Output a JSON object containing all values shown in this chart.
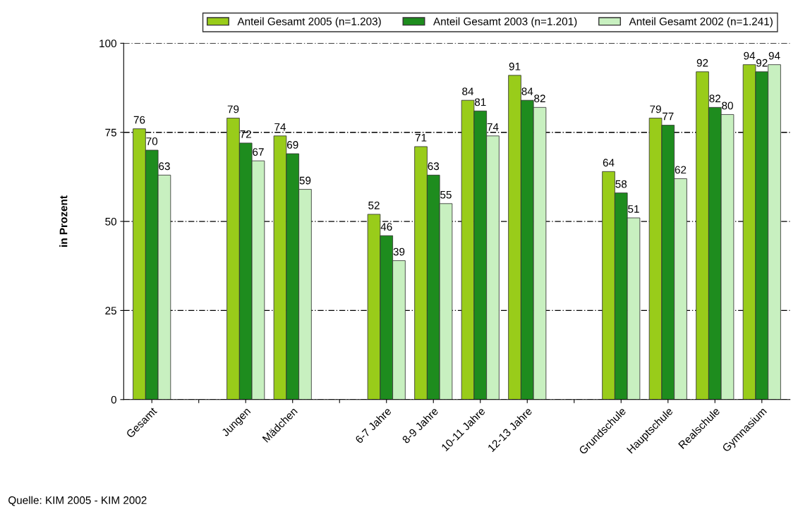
{
  "chart_data": {
    "type": "bar",
    "ylabel": "in Prozent",
    "categories": [
      "Gesamt",
      null,
      "Jungen",
      "Mädchen",
      null,
      "6-7 Jahre",
      "8-9 Jahre",
      "10-11 Jahre",
      "12-13 Jahre",
      null,
      "Grundschule",
      "Hauptschule",
      "Realschule",
      "Gymnasium"
    ],
    "series": [
      {
        "name": "Anteil Gesamt 2005 (n=1.203)",
        "color": "#99cc1a",
        "values": [
          76,
          null,
          79,
          74,
          null,
          52,
          71,
          84,
          91,
          null,
          64,
          79,
          92,
          94
        ]
      },
      {
        "name": "Anteil Gesamt 2003 (n=1.201)",
        "color": "#1e8c1e",
        "values": [
          70,
          null,
          72,
          69,
          null,
          46,
          63,
          81,
          84,
          null,
          58,
          77,
          82,
          92
        ]
      },
      {
        "name": "Anteil Gesamt 2002 (n=1.241)",
        "color": "#c8f0c0",
        "values": [
          63,
          null,
          67,
          59,
          null,
          39,
          55,
          74,
          82,
          null,
          51,
          62,
          80,
          94
        ]
      }
    ],
    "ylim": [
      0,
      100
    ],
    "yticks": [
      0,
      25,
      50,
      75,
      100
    ],
    "grid": "y",
    "legend": "top",
    "data_labels": true,
    "annotations": [
      "Quelle: KIM 2005 - KIM 2002"
    ]
  }
}
